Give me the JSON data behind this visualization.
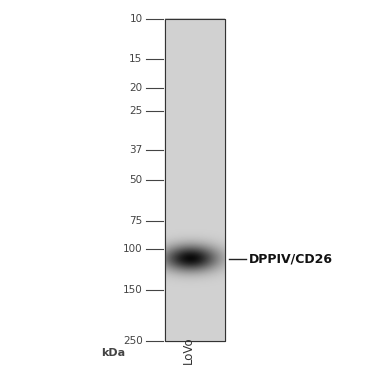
{
  "background_color": "#ffffff",
  "gel_background": "#d0d0d0",
  "fig_width": 3.75,
  "fig_height": 3.75,
  "dpi": 100,
  "kda_label": "kDa",
  "sample_label": "LoVo",
  "marker_labels": [
    "250",
    "150",
    "100",
    "75",
    "50",
    "37",
    "25",
    "20",
    "15",
    "10"
  ],
  "marker_kda": [
    250,
    150,
    100,
    75,
    50,
    37,
    25,
    20,
    15,
    10
  ],
  "kda_min": 10,
  "kda_max": 250,
  "band_kda": 110,
  "band_label": "DPPIV/CD26",
  "band_label_fontsize": 9,
  "band_label_fontweight": "bold",
  "marker_fontsize": 7.5,
  "kda_fontsize": 8,
  "sample_fontsize": 8.5,
  "marker_color": "#444444",
  "band_color": "#333333",
  "gel_edge_color": "#333333",
  "gel_edge_lw": 0.8,
  "marker_tick_lw": 0.8
}
